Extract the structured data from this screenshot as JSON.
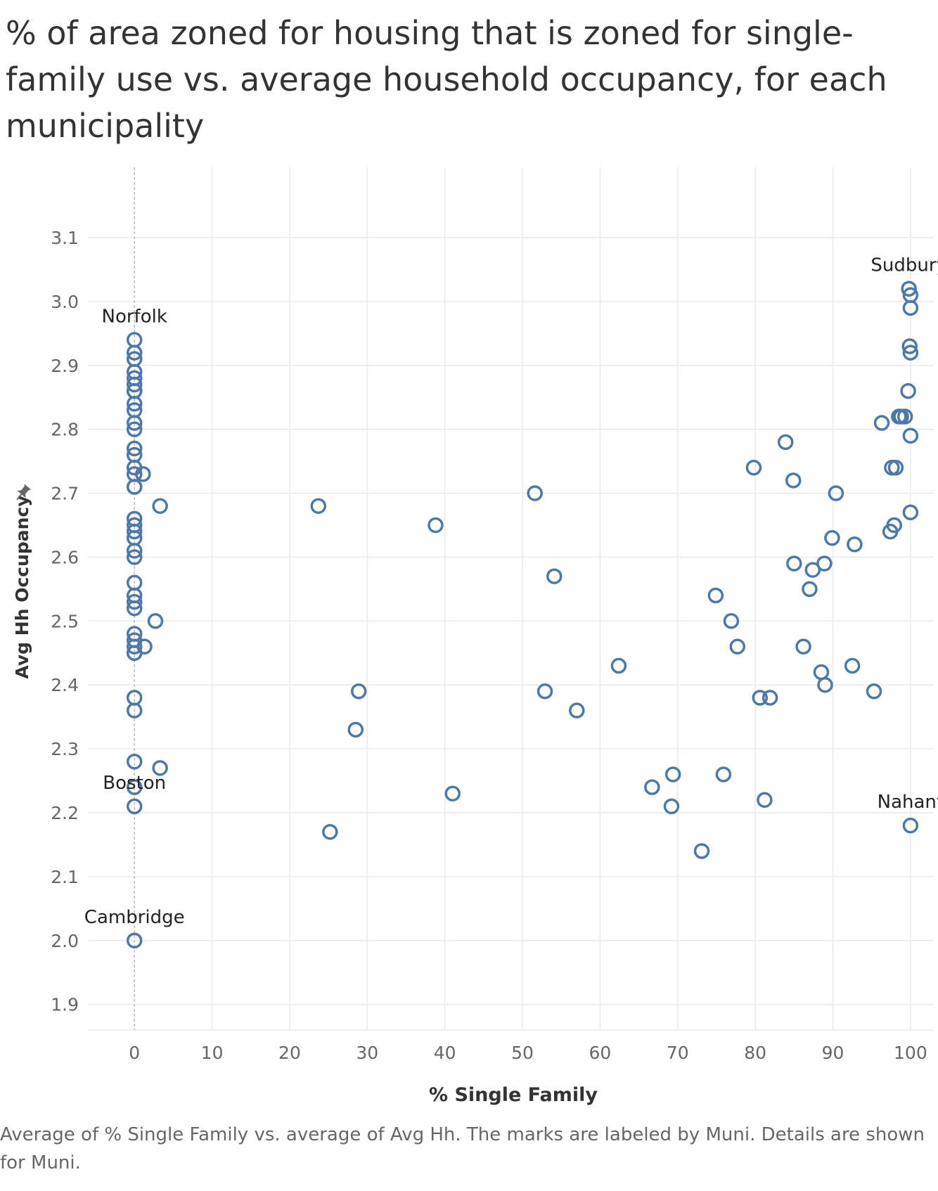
{
  "title": "% of area zoned for housing that is zoned for single-family use vs. average household occupancy, for each municipality",
  "caption": "Average of % Single Family vs. average of Avg Hh.  The marks are labeled by Muni.  Details are shown for Muni.",
  "pin_icon": "pin-icon",
  "colors": {
    "marker": "#4e79a7",
    "grid": "#e9e9e9",
    "tick_text": "#666666",
    "axis_title": "#333333",
    "label": "#222222",
    "zero_line": "#b0b0b0"
  },
  "chart_data": {
    "type": "scatter",
    "title": "% of area zoned for housing that is zoned for single-family use vs. average household occupancy, for each municipality",
    "xlabel": "% Single Family",
    "ylabel": "Avg Hh Occupancy",
    "xlim": [
      -6,
      103
    ],
    "ylim": [
      1.86,
      3.21
    ],
    "xticks": [
      0,
      10,
      20,
      30,
      40,
      50,
      60,
      70,
      80,
      90,
      100
    ],
    "xtick_labels": [
      "0",
      "10",
      "20",
      "30",
      "40",
      "50",
      "60",
      "70",
      "80",
      "90",
      "100"
    ],
    "yticks": [
      1.9,
      2.0,
      2.1,
      2.2,
      2.3,
      2.4,
      2.5,
      2.6,
      2.7,
      2.8,
      2.9,
      3.0,
      3.1
    ],
    "ytick_labels": [
      "1.9",
      "2.0",
      "2.1",
      "2.2",
      "2.3",
      "2.4",
      "2.5",
      "2.6",
      "2.7",
      "2.8",
      "2.9",
      "3.0",
      "3.1"
    ],
    "grid": true,
    "zero_reference_line": "dashed vertical at x=0",
    "marker": "hollow circle",
    "points": [
      [
        0,
        2.94
      ],
      [
        0,
        2.92
      ],
      [
        0,
        2.91
      ],
      [
        0,
        2.89
      ],
      [
        0,
        2.88
      ],
      [
        0,
        2.87
      ],
      [
        0,
        2.86
      ],
      [
        0,
        2.86
      ],
      [
        0,
        2.84
      ],
      [
        0,
        2.83
      ],
      [
        0,
        2.81
      ],
      [
        0,
        2.8
      ],
      [
        0,
        2.77
      ],
      [
        0,
        2.76
      ],
      [
        0,
        2.74
      ],
      [
        0,
        2.73
      ],
      [
        1.1,
        2.73
      ],
      [
        0,
        2.71
      ],
      [
        0,
        2.71
      ],
      [
        3.3,
        2.68
      ],
      [
        0,
        2.66
      ],
      [
        0,
        2.65
      ],
      [
        0,
        2.64
      ],
      [
        0,
        2.63
      ],
      [
        0,
        2.61
      ],
      [
        0,
        2.6
      ],
      [
        0,
        2.56
      ],
      [
        0,
        2.54
      ],
      [
        0,
        2.53
      ],
      [
        0,
        2.52
      ],
      [
        2.7,
        2.5
      ],
      [
        0,
        2.48
      ],
      [
        0,
        2.47
      ],
      [
        1.3,
        2.46
      ],
      [
        0,
        2.46
      ],
      [
        0,
        2.45
      ],
      [
        0,
        2.45
      ],
      [
        0,
        2.38
      ],
      [
        0,
        2.36
      ],
      [
        0,
        2.28
      ],
      [
        3.3,
        2.27
      ],
      [
        0,
        2.24
      ],
      [
        0,
        2.21
      ],
      [
        0,
        2.0
      ],
      [
        23.7,
        2.68
      ],
      [
        25.2,
        2.17
      ],
      [
        28.5,
        2.33
      ],
      [
        28.9,
        2.39
      ],
      [
        38.8,
        2.65
      ],
      [
        41.0,
        2.23
      ],
      [
        51.6,
        2.7
      ],
      [
        52.9,
        2.39
      ],
      [
        54.1,
        2.57
      ],
      [
        57.0,
        2.36
      ],
      [
        62.4,
        2.43
      ],
      [
        66.7,
        2.24
      ],
      [
        69.2,
        2.21
      ],
      [
        69.4,
        2.26
      ],
      [
        73.1,
        2.14
      ],
      [
        74.9,
        2.54
      ],
      [
        75.9,
        2.26
      ],
      [
        76.9,
        2.5
      ],
      [
        77.7,
        2.46
      ],
      [
        79.8,
        2.74
      ],
      [
        80.6,
        2.38
      ],
      [
        81.2,
        2.22
      ],
      [
        81.9,
        2.38
      ],
      [
        83.9,
        2.78
      ],
      [
        84.9,
        2.72
      ],
      [
        85.0,
        2.59
      ],
      [
        86.2,
        2.46
      ],
      [
        87.0,
        2.55
      ],
      [
        87.4,
        2.58
      ],
      [
        88.5,
        2.42
      ],
      [
        88.9,
        2.59
      ],
      [
        89.0,
        2.4
      ],
      [
        89.9,
        2.63
      ],
      [
        90.4,
        2.7
      ],
      [
        92.5,
        2.43
      ],
      [
        92.8,
        2.62
      ],
      [
        95.3,
        2.39
      ],
      [
        96.3,
        2.81
      ],
      [
        97.4,
        2.64
      ],
      [
        97.6,
        2.74
      ],
      [
        97.9,
        2.65
      ],
      [
        98.1,
        2.74
      ],
      [
        98.5,
        2.82
      ],
      [
        98.8,
        2.82
      ],
      [
        99.3,
        2.82
      ],
      [
        99.7,
        2.86
      ],
      [
        99.8,
        3.02
      ],
      [
        100,
        3.01
      ],
      [
        100,
        2.99
      ],
      [
        99.9,
        2.93
      ],
      [
        100,
        2.92
      ],
      [
        100,
        2.79
      ],
      [
        100,
        2.67
      ],
      [
        100,
        2.18
      ]
    ],
    "labels": [
      {
        "text": "Sudbury",
        "x": 99.8,
        "y": 3.02
      },
      {
        "text": "Norfolk",
        "x": 0,
        "y": 2.94
      },
      {
        "text": "Boston",
        "x": 0,
        "y": 2.21
      },
      {
        "text": "Nahant",
        "x": 100,
        "y": 2.18
      },
      {
        "text": "Cambridge",
        "x": 0,
        "y": 2.0
      }
    ]
  }
}
